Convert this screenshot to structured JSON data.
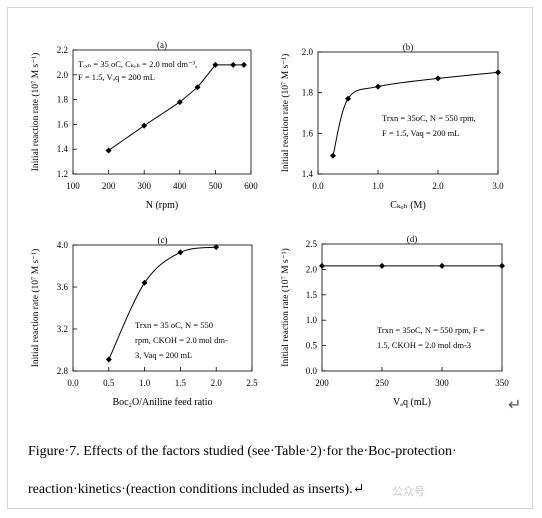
{
  "caption": {
    "line1": "Figure·7. Effects of the factors studied (see·Table·2)·for the·Boc-protection·",
    "line2": "reaction·kinetics·(reaction conditions included as inserts).↵"
  },
  "return_glyph": "↵",
  "watermark": "公众号",
  "chart_data": [
    {
      "type": "line",
      "panel_label": "(a)",
      "xlabel": "N (rpm)",
      "ylabel": "Initial reaction rate (10⁷ M s⁻¹)",
      "xlim": [
        100,
        600
      ],
      "ylim": [
        1.2,
        2.2
      ],
      "xticks": [
        "100",
        "200",
        "300",
        "400",
        "500",
        "600"
      ],
      "yticks": [
        "1.2",
        "1.4",
        "1.6",
        "1.8",
        "2.0",
        "2.2"
      ],
      "x": [
        200,
        300,
        400,
        450,
        500,
        550,
        580
      ],
      "y": [
        1.39,
        1.59,
        1.78,
        1.9,
        2.08,
        2.08,
        2.08
      ],
      "annotation_lines": [
        "Tᵣₓₙ = 35 oC, Cₖₒₕ = 2.0 mol dm⁻³,",
        "F = 1.5, Vₐq = 200 mL"
      ]
    },
    {
      "type": "line",
      "panel_label": "(b)",
      "xlabel": "Cₖₒₕ (M)",
      "ylabel": "Initial reaction rate (10⁷ M s⁻¹)",
      "xlim": [
        0.0,
        3.0
      ],
      "ylim": [
        1.4,
        2.0
      ],
      "xticks": [
        "0.0",
        "1.0",
        "2.0",
        "3.0"
      ],
      "yticks": [
        "1.4",
        "1.6",
        "1.8",
        "2.0"
      ],
      "x": [
        0.25,
        0.5,
        1.0,
        2.0,
        3.0
      ],
      "y": [
        1.49,
        1.77,
        1.83,
        1.87,
        1.9
      ],
      "annotation_lines": [
        "Trxn = 35oC, N = 550 rpm,",
        "F = 1.5, Vaq = 200 mL"
      ]
    },
    {
      "type": "line",
      "panel_label": "(c)",
      "xlabel": "Boc₂O/Aniline feed ratio",
      "ylabel": "Initial reaction rate (10⁷ M s⁻¹)",
      "xlim": [
        0.0,
        2.5
      ],
      "ylim": [
        2.8,
        4.0
      ],
      "xticks": [
        "0.0",
        "0.5",
        "1.0",
        "1.5",
        "2.0",
        "2.5"
      ],
      "yticks": [
        "2.8",
        "3.2",
        "3.6",
        "4.0"
      ],
      "x": [
        0.5,
        1.0,
        1.5,
        2.0
      ],
      "y": [
        2.91,
        3.64,
        3.93,
        3.98
      ],
      "annotation_lines": [
        "Trxn = 35 oC, N = 550",
        "rpm, CKOH = 2.0 mol dm-",
        "3, Vaq = 200 mL"
      ]
    },
    {
      "type": "line",
      "panel_label": "(d)",
      "xlabel": "Vₐq (mL)",
      "ylabel": "Initial reaction rate (10⁷ M s⁻¹)",
      "xlim": [
        200,
        350
      ],
      "ylim": [
        0.0,
        2.5
      ],
      "xticks": [
        "200",
        "250",
        "300",
        "350"
      ],
      "yticks": [
        "0.0",
        "0.5",
        "1.0",
        "1.5",
        "2.0",
        "2.5"
      ],
      "x": [
        200,
        250,
        300,
        350
      ],
      "y": [
        2.07,
        2.07,
        2.07,
        2.07
      ],
      "annotation_lines": [
        "Trxn = 35oC, N = 550 rpm, F =",
        "1.5, CKOH = 2.0 mol dm-3"
      ]
    }
  ]
}
